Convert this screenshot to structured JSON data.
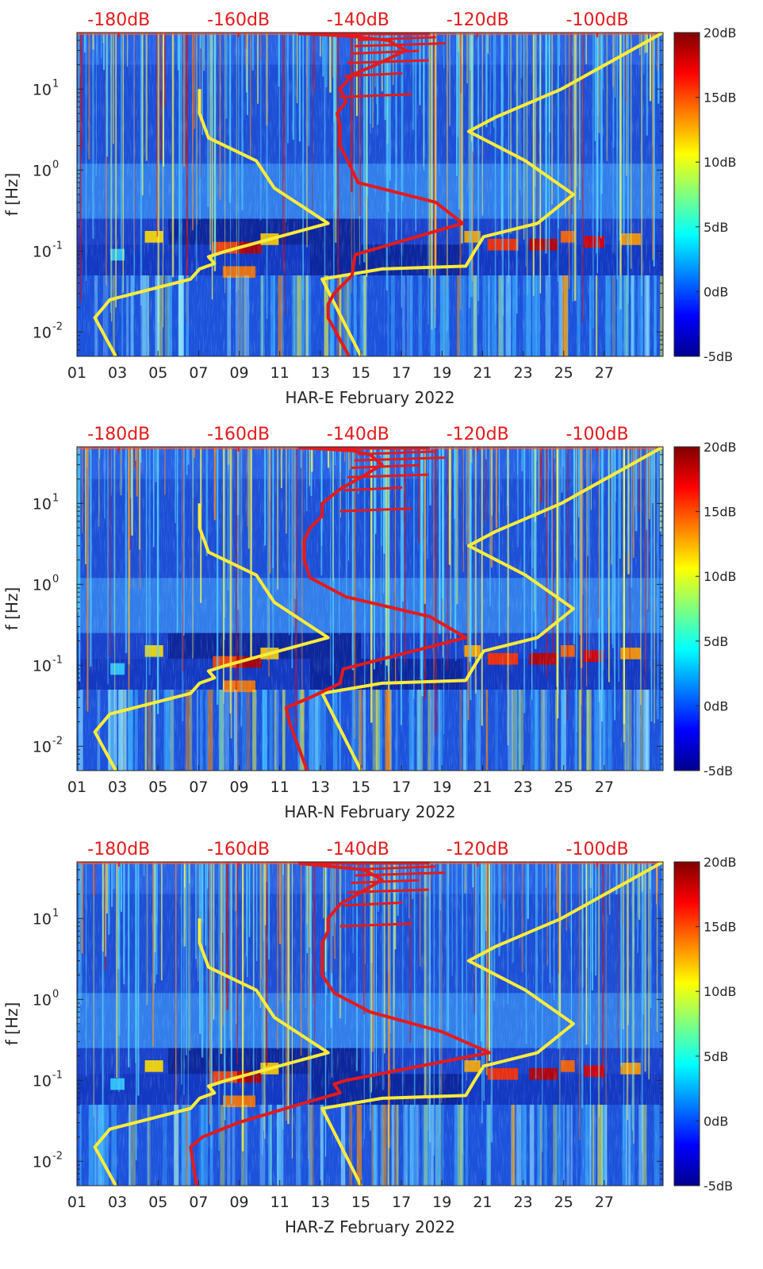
{
  "chart_data": [
    {
      "type": "heatmap",
      "component": "HAR-E",
      "xlabel": "HAR-E February 2022",
      "ylabel": "f [Hz]",
      "x_ticks": [
        "01",
        "03",
        "05",
        "07",
        "09",
        "11",
        "13",
        "15",
        "17",
        "19",
        "21",
        "23",
        "25",
        "27"
      ],
      "y_ticks": [
        {
          "value": 0.01,
          "label": "10",
          "exp": "-2"
        },
        {
          "value": 0.1,
          "label": "10",
          "exp": "-1"
        },
        {
          "value": 1,
          "label": "10",
          "exp": "0"
        },
        {
          "value": 10,
          "label": "10",
          "exp": "1"
        }
      ],
      "xlim": [
        1,
        29.9
      ],
      "ylim": [
        0.005,
        50
      ],
      "y_scale": "log",
      "top_axis": {
        "labels": [
          "-180dB",
          "-160dB",
          "-140dB",
          "-120dB",
          "-100dB"
        ],
        "values": [
          -180,
          -160,
          -140,
          -120,
          -100
        ],
        "range": [
          -187,
          -89
        ]
      },
      "colorbar": {
        "labels": [
          "20dB",
          "15dB",
          "10dB",
          "5dB",
          "0dB",
          "-5dB"
        ],
        "values": [
          20,
          15,
          10,
          5,
          0,
          -5
        ],
        "range": [
          -5,
          20
        ],
        "colormap": "jet"
      },
      "series": [
        {
          "color": "#ffeb3b",
          "curve": "noise model low",
          "db": [
            -180.5,
            -184,
            -181.5,
            -168,
            -166.5,
            -164,
            -165,
            -162,
            -145,
            -154,
            -157,
            -165,
            -166.5,
            -166.5
          ],
          "freq": [
            0.005,
            0.015,
            0.025,
            0.045,
            0.06,
            0.07,
            0.085,
            0.1,
            0.22,
            0.6,
            1.3,
            2.5,
            5,
            10
          ]
        },
        {
          "color": "#ffeb3b",
          "curve": "noise model high",
          "db": [
            -139.5,
            -146,
            -136,
            -122,
            -120.5,
            -119,
            -110,
            -104,
            -112,
            -121.5,
            -117,
            -106,
            -89
          ],
          "freq": [
            0.005,
            0.045,
            0.06,
            0.065,
            0.1,
            0.15,
            0.22,
            0.5,
            1.3,
            3,
            4.5,
            10,
            50
          ]
        },
        {
          "color": "#e41a1c",
          "curve": "median PSD",
          "db": [
            -141.5,
            -145,
            -145,
            -144,
            -141,
            -140.5,
            -122.5,
            -127,
            -140,
            -141.5,
            -143,
            -143,
            -143.5,
            -142,
            -143,
            -141,
            -137,
            -132,
            -135,
            -141,
            -148
          ],
          "freq": [
            0.005,
            0.015,
            0.022,
            0.03,
            0.05,
            0.09,
            0.22,
            0.4,
            0.7,
            1.2,
            2,
            3.5,
            5,
            7,
            10,
            15,
            20,
            30,
            40,
            45,
            48
          ]
        }
      ]
    },
    {
      "type": "heatmap",
      "component": "HAR-N",
      "xlabel": "HAR-N February 2022",
      "ylabel": "f [Hz]",
      "x_ticks": [
        "01",
        "03",
        "05",
        "07",
        "09",
        "11",
        "13",
        "15",
        "17",
        "19",
        "21",
        "23",
        "25",
        "27"
      ],
      "y_ticks": [
        {
          "value": 0.01,
          "label": "10",
          "exp": "-2"
        },
        {
          "value": 0.1,
          "label": "10",
          "exp": "-1"
        },
        {
          "value": 1,
          "label": "10",
          "exp": "0"
        },
        {
          "value": 10,
          "label": "10",
          "exp": "1"
        }
      ],
      "xlim": [
        1,
        29.9
      ],
      "ylim": [
        0.005,
        50
      ],
      "y_scale": "log",
      "top_axis": {
        "labels": [
          "-180dB",
          "-160dB",
          "-140dB",
          "-120dB",
          "-100dB"
        ],
        "values": [
          -180,
          -160,
          -140,
          -120,
          -100
        ],
        "range": [
          -187,
          -89
        ]
      },
      "colorbar": {
        "labels": [
          "20dB",
          "15dB",
          "10dB",
          "5dB",
          "0dB",
          "-5dB"
        ],
        "values": [
          20,
          15,
          10,
          5,
          0,
          -5
        ],
        "range": [
          -5,
          20
        ],
        "colormap": "jet"
      },
      "series": [
        {
          "color": "#ffeb3b",
          "curve": "noise model low",
          "db": [
            -180.5,
            -184,
            -181.5,
            -168,
            -166.5,
            -164,
            -165,
            -162,
            -145,
            -154,
            -157,
            -165,
            -166.5,
            -166.5
          ],
          "freq": [
            0.005,
            0.015,
            0.025,
            0.045,
            0.06,
            0.07,
            0.085,
            0.1,
            0.22,
            0.6,
            1.3,
            2.5,
            5,
            10
          ]
        },
        {
          "color": "#ffeb3b",
          "curve": "noise model high",
          "db": [
            -139.5,
            -146,
            -136,
            -122,
            -120.5,
            -119,
            -110,
            -104,
            -112,
            -121.5,
            -117,
            -106,
            -89
          ],
          "freq": [
            0.005,
            0.045,
            0.06,
            0.065,
            0.1,
            0.15,
            0.22,
            0.5,
            1.3,
            3,
            4.5,
            10,
            50
          ]
        },
        {
          "color": "#e41a1c",
          "curve": "median PSD",
          "db": [
            -148.5,
            -151.5,
            -152,
            -148,
            -143,
            -142.5,
            -122,
            -128,
            -142,
            -148,
            -149,
            -149,
            -148,
            -146,
            -146,
            -143,
            -140,
            -136,
            -138,
            -141,
            -148
          ],
          "freq": [
            0.005,
            0.02,
            0.03,
            0.04,
            0.06,
            0.09,
            0.22,
            0.4,
            0.7,
            1.2,
            2,
            3.5,
            5,
            7,
            10,
            15,
            20,
            30,
            40,
            45,
            48
          ]
        }
      ]
    },
    {
      "type": "heatmap",
      "component": "HAR-Z",
      "xlabel": "HAR-Z February 2022",
      "ylabel": "f [Hz]",
      "x_ticks": [
        "01",
        "03",
        "05",
        "07",
        "09",
        "11",
        "13",
        "15",
        "17",
        "19",
        "21",
        "23",
        "25",
        "27"
      ],
      "y_ticks": [
        {
          "value": 0.01,
          "label": "10",
          "exp": "-2"
        },
        {
          "value": 0.1,
          "label": "10",
          "exp": "-1"
        },
        {
          "value": 1,
          "label": "10",
          "exp": "0"
        },
        {
          "value": 10,
          "label": "10",
          "exp": "1"
        }
      ],
      "xlim": [
        1,
        29.9
      ],
      "ylim": [
        0.005,
        50
      ],
      "y_scale": "log",
      "top_axis": {
        "labels": [
          "-180dB",
          "-160dB",
          "-140dB",
          "-120dB",
          "-100dB"
        ],
        "values": [
          -180,
          -160,
          -140,
          -120,
          -100
        ],
        "range": [
          -187,
          -89
        ]
      },
      "colorbar": {
        "labels": [
          "20dB",
          "15dB",
          "10dB",
          "5dB",
          "0dB",
          "-5dB"
        ],
        "values": [
          20,
          15,
          10,
          5,
          0,
          -5
        ],
        "range": [
          -5,
          20
        ],
        "colormap": "jet"
      },
      "series": [
        {
          "color": "#ffeb3b",
          "curve": "noise model low",
          "db": [
            -180.5,
            -184,
            -181.5,
            -168,
            -166.5,
            -164,
            -165,
            -162,
            -145,
            -154,
            -157,
            -165,
            -166.5,
            -166.5
          ],
          "freq": [
            0.005,
            0.015,
            0.025,
            0.045,
            0.06,
            0.07,
            0.085,
            0.1,
            0.22,
            0.6,
            1.3,
            2.5,
            5,
            10
          ]
        },
        {
          "color": "#ffeb3b",
          "curve": "noise model high",
          "db": [
            -139.5,
            -146,
            -136,
            -122,
            -120.5,
            -119,
            -110,
            -104,
            -112,
            -121.5,
            -117,
            -106,
            -89
          ],
          "freq": [
            0.005,
            0.045,
            0.06,
            0.065,
            0.1,
            0.15,
            0.22,
            0.5,
            1.3,
            3,
            4.5,
            10,
            50
          ]
        },
        {
          "color": "#e41a1c",
          "curve": "median PSD",
          "db": [
            -167,
            -168,
            -166,
            -160,
            -150,
            -143,
            -144,
            -142,
            -118,
            -126,
            -138,
            -144,
            -146,
            -146,
            -146,
            -145,
            -145,
            -143,
            -140,
            -136,
            -139,
            -150
          ],
          "freq": [
            0.005,
            0.015,
            0.02,
            0.03,
            0.05,
            0.07,
            0.09,
            0.1,
            0.22,
            0.4,
            0.7,
            1.2,
            2,
            3.5,
            5,
            7,
            10,
            15,
            20,
            30,
            40,
            48
          ]
        }
      ]
    }
  ]
}
